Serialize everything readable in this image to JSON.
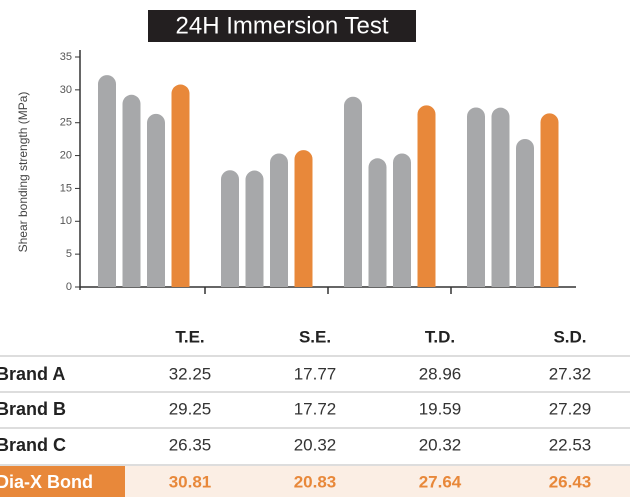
{
  "chart_data": {
    "type": "bar",
    "title": "24H Immersion Test",
    "y_label": "Shear bonding strength (MPa)",
    "categories": [
      "T.E.",
      "S.E.",
      "T.D.",
      "S.D."
    ],
    "series": [
      {
        "name": "Brand A",
        "color": "#a7a8aa",
        "values": [
          32.25,
          17.77,
          28.96,
          27.32
        ]
      },
      {
        "name": "Brand B",
        "color": "#a7a8aa",
        "values": [
          29.25,
          17.72,
          19.59,
          27.29
        ]
      },
      {
        "name": "Brand C",
        "color": "#a7a8aa",
        "values": [
          26.35,
          20.32,
          20.32,
          22.53
        ]
      },
      {
        "name": "Dia-X Bond",
        "color": "#e8883a",
        "values": [
          30.81,
          20.83,
          27.64,
          26.43
        ]
      }
    ],
    "ylim": [
      0,
      35
    ],
    "yticks": [
      0,
      5,
      10,
      15,
      20,
      25,
      30,
      35
    ]
  }
}
